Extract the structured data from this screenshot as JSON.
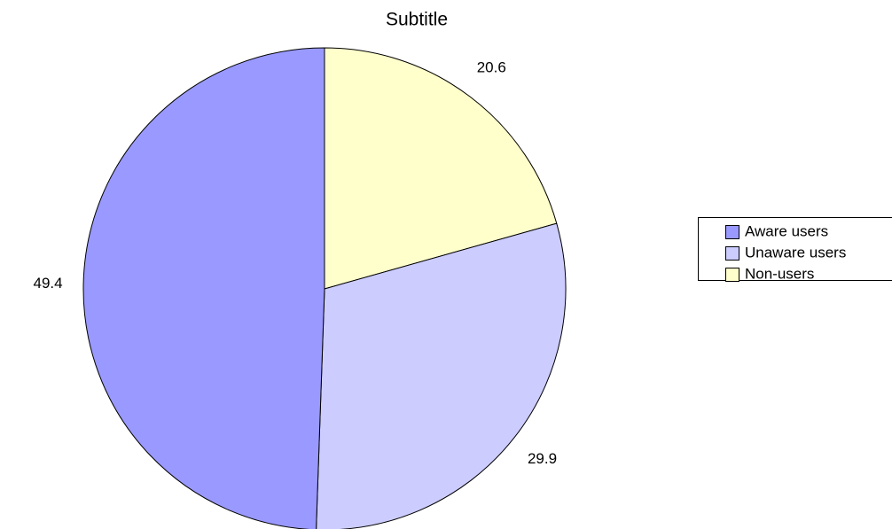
{
  "chart_data": {
    "type": "pie",
    "title": "Subtitle",
    "categories": [
      "Aware users",
      "Unaware users",
      "Non-users"
    ],
    "values": [
      49.4,
      29.9,
      20.6
    ],
    "colors": [
      "#9999ff",
      "#ccccff",
      "#ffffcc"
    ],
    "legend": "right"
  }
}
